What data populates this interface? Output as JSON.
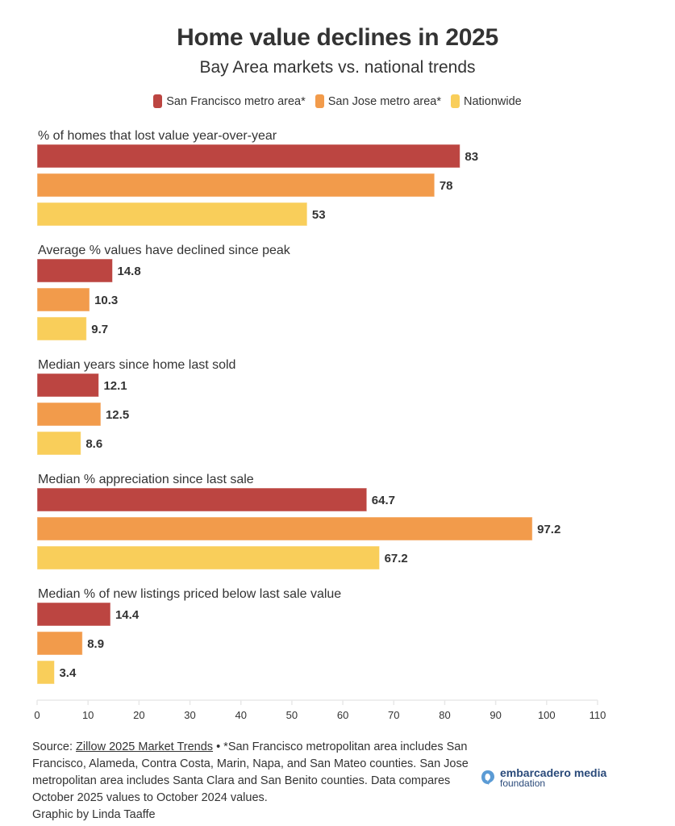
{
  "colors": {
    "sf": "#BC4541",
    "sj": "#F29B4B",
    "nation": "#F9CE5A",
    "text": "#333333",
    "axis": "#E8E8E8",
    "logo": "#5B9BD5"
  },
  "chart_data": {
    "type": "bar",
    "orientation": "horizontal",
    "title": "Home value declines in 2025",
    "subtitle": "Bay Area markets vs. national trends",
    "legend": [
      "San Francisco metro area*",
      "San Jose metro area*",
      "Nationwide"
    ],
    "legend_placement": "top-center",
    "xlim": [
      0,
      110
    ],
    "xticks": [
      0,
      10,
      20,
      30,
      40,
      50,
      60,
      70,
      80,
      90,
      100,
      110
    ],
    "grid": false,
    "series_keys": [
      "sf",
      "sj",
      "nation"
    ],
    "groups": [
      {
        "label": "% of homes that lost value year-over-year",
        "values": [
          83,
          78,
          53
        ],
        "labels": [
          "83",
          "78",
          "53"
        ]
      },
      {
        "label": "Average % values have declined since peak",
        "values": [
          14.8,
          10.3,
          9.7
        ],
        "labels": [
          "14.8",
          "10.3",
          "9.7"
        ]
      },
      {
        "label": "Median years since home last sold",
        "values": [
          12.1,
          12.5,
          8.6
        ],
        "labels": [
          "12.1",
          "12.5",
          "8.6"
        ]
      },
      {
        "label": "Median % appreciation since last sale",
        "values": [
          64.7,
          97.2,
          67.2
        ],
        "labels": [
          "64.7",
          "97.2",
          "67.2"
        ]
      },
      {
        "label": "Median % of new listings priced below last sale value",
        "values": [
          14.4,
          8.9,
          3.4
        ],
        "labels": [
          "14.4",
          "8.9",
          "3.4"
        ]
      }
    ]
  },
  "footer": {
    "source_prefix": "Source: ",
    "source_link": "Zillow 2025 Market Trends",
    "note": " • *San Francisco metropolitan area includes San Francisco, Alameda, Contra Costa, Marin, Napa, and San Mateo counties. San Jose metropolitan area includes Santa Clara and San Benito counties. Data compares October 2025 values to October 2024 values.",
    "credit": "Graphic by Linda Taaffe"
  },
  "logo": {
    "line1": "embarcadero media",
    "line2": "foundation"
  }
}
